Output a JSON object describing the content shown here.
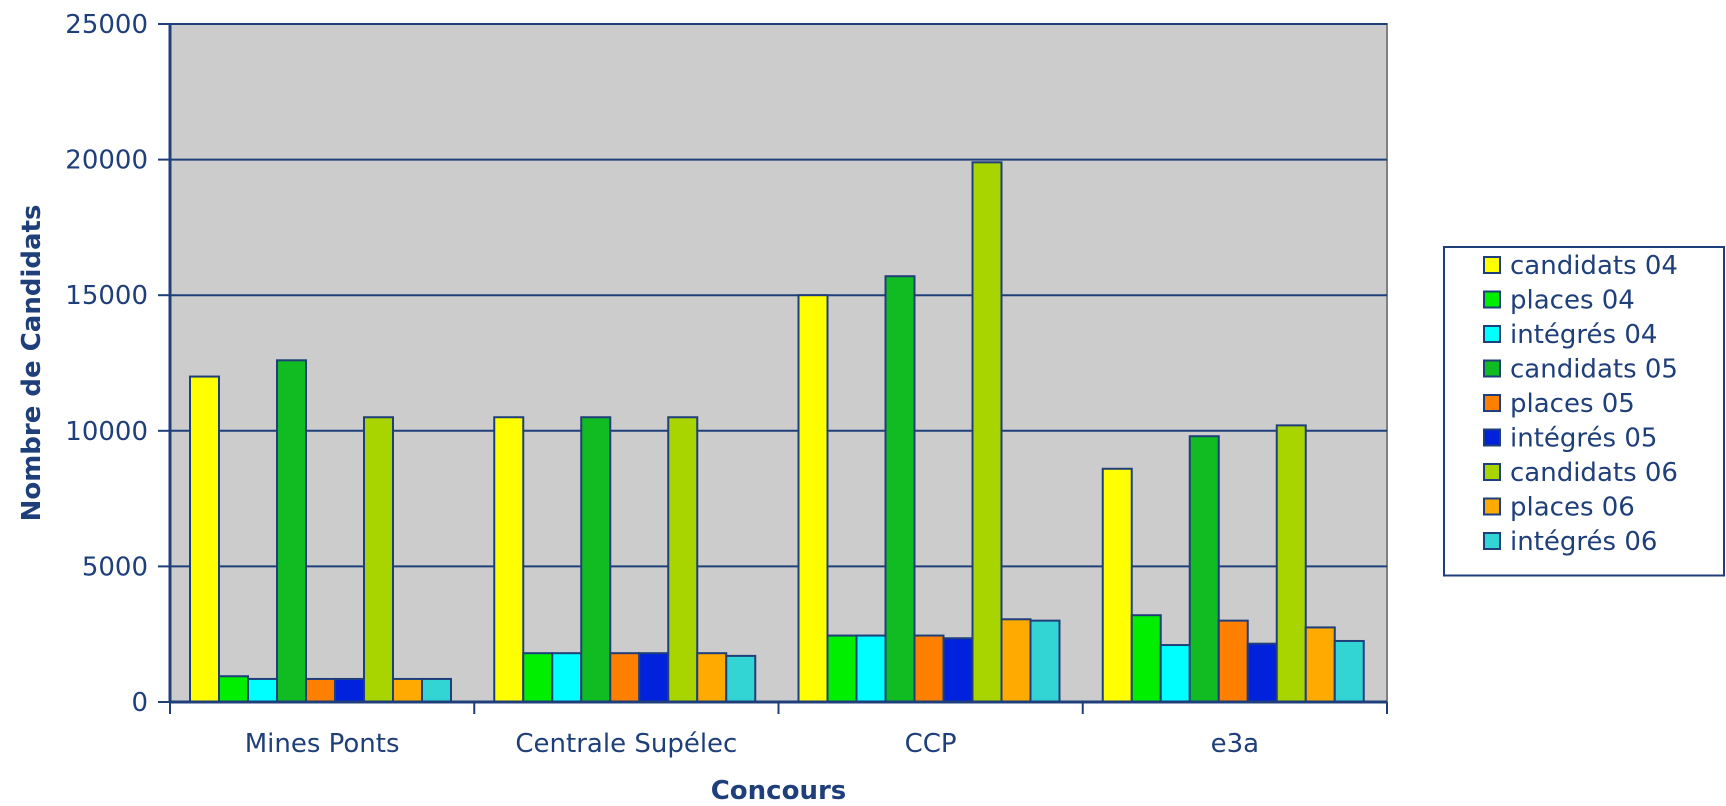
{
  "chart_data": {
    "type": "bar",
    "title": "",
    "xlabel": "Concours",
    "ylabel": "Nombre de Candidats",
    "categories": [
      "Mines Ponts",
      "Centrale Supélec",
      "CCP",
      "e3a"
    ],
    "ylim": [
      0,
      25000
    ],
    "yticks": [
      "0",
      "5000",
      "10000",
      "15000",
      "20000",
      "25000"
    ],
    "grid": true,
    "legend_position": "right",
    "plot_background": "#cccccc",
    "axis_color": "#1f3f7a",
    "series": [
      {
        "name": "candidats 04",
        "color": "#ffff00",
        "values": [
          12000,
          10500,
          15000,
          8600
        ]
      },
      {
        "name": "places 04",
        "color": "#00ee00",
        "values": [
          950,
          1800,
          2450,
          3200
        ]
      },
      {
        "name": "intégrés 04",
        "color": "#00ffff",
        "values": [
          850,
          1800,
          2450,
          2100
        ]
      },
      {
        "name": "candidats 05",
        "color": "#11bb22",
        "values": [
          12600,
          10500,
          15700,
          9800
        ]
      },
      {
        "name": "places 05",
        "color": "#ff7f00",
        "values": [
          850,
          1800,
          2450,
          3000
        ]
      },
      {
        "name": "intégrés 05",
        "color": "#0022dd",
        "values": [
          850,
          1800,
          2350,
          2150
        ]
      },
      {
        "name": "candidats 06",
        "color": "#a8d400",
        "values": [
          10500,
          10500,
          19900,
          10200
        ]
      },
      {
        "name": "places 06",
        "color": "#ffaa00",
        "values": [
          850,
          1800,
          3050,
          2750
        ]
      },
      {
        "name": "intégrés 06",
        "color": "#33d4d4",
        "values": [
          850,
          1700,
          3000,
          2250
        ]
      }
    ]
  }
}
